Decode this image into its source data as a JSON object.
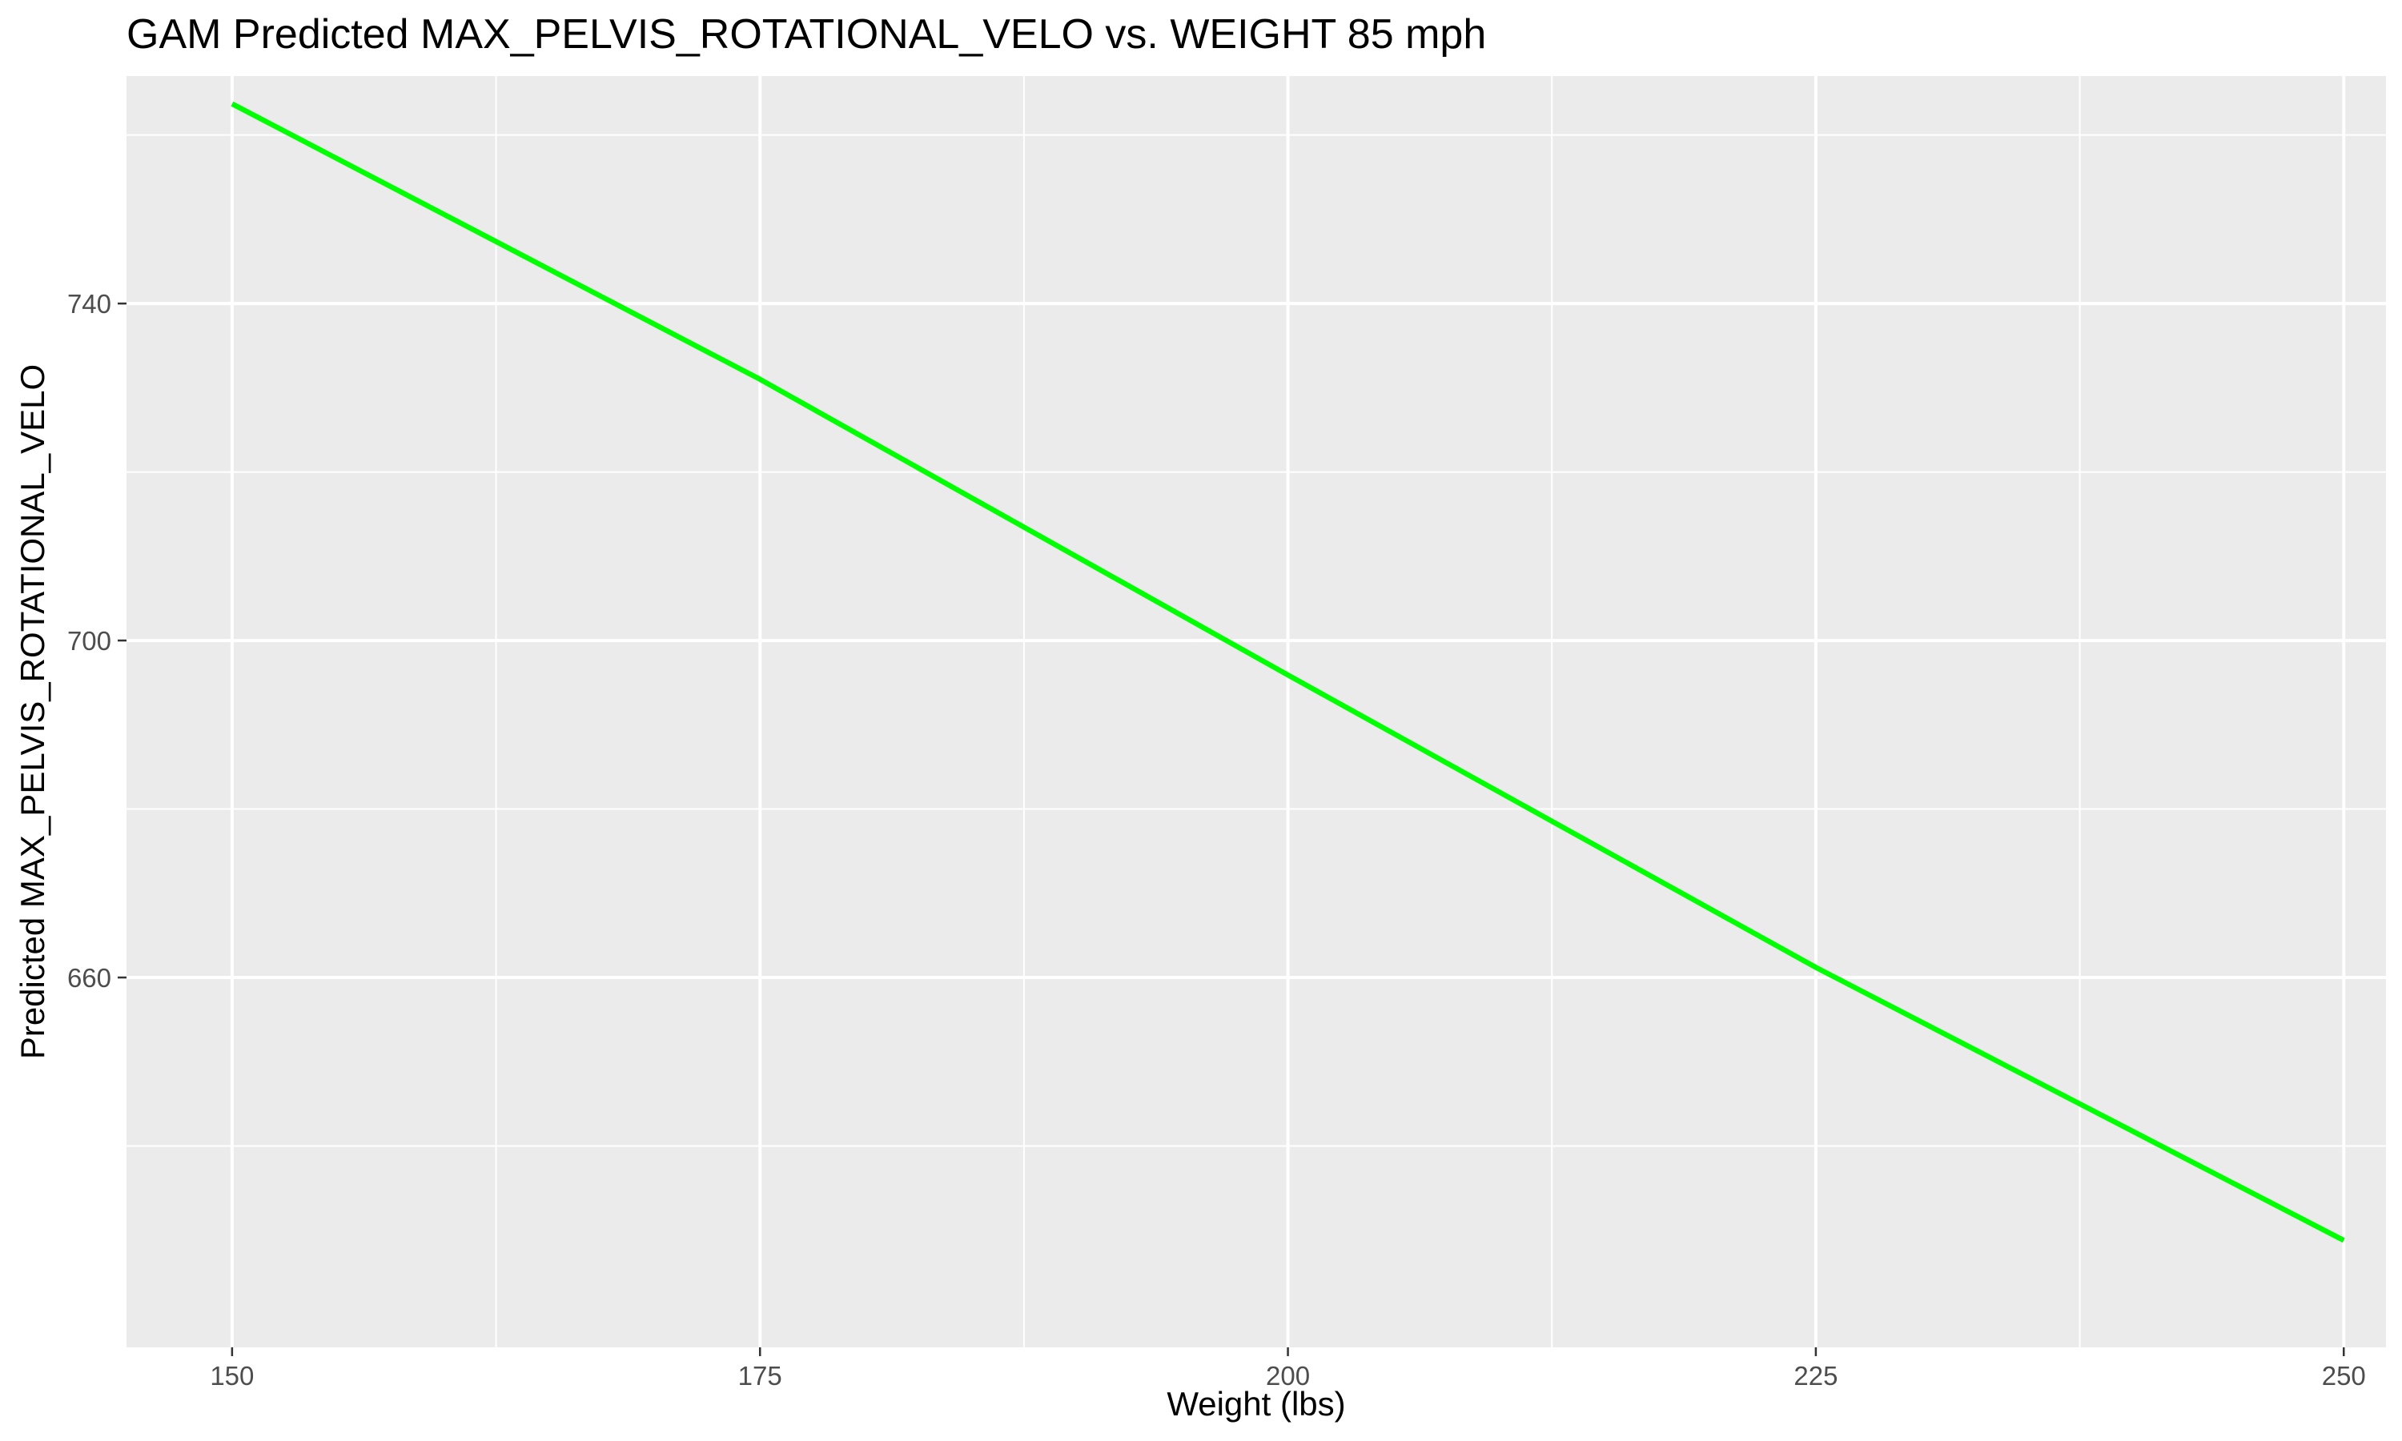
{
  "chart_data": {
    "type": "line",
    "title": "GAM Predicted MAX_PELVIS_ROTATIONAL_VELO vs. WEIGHT 85 mph",
    "xlabel": "Weight (lbs)",
    "ylabel": "Predicted MAX_PELVIS_ROTATIONAL_VELO",
    "xlim": [
      145,
      252
    ],
    "ylim": [
      616.1,
      767.0
    ],
    "x_ticks": [
      150,
      175,
      200,
      225,
      250
    ],
    "y_ticks": [
      660,
      700,
      740
    ],
    "x_minor": [
      162.5,
      187.5,
      212.5,
      237.5
    ],
    "y_minor": [
      640,
      680,
      720,
      760
    ],
    "grid": true,
    "legend": "none",
    "colors": {
      "panel_background": "#ebebeb",
      "grid_line": "#ffffff",
      "line": "#00ff00",
      "tick_mark": "#333333"
    },
    "series": [
      {
        "x": [
          150,
          175,
          200,
          225,
          250
        ],
        "y": [
          763.7,
          731.0,
          695.9,
          661.2,
          628.8
        ]
      }
    ]
  }
}
